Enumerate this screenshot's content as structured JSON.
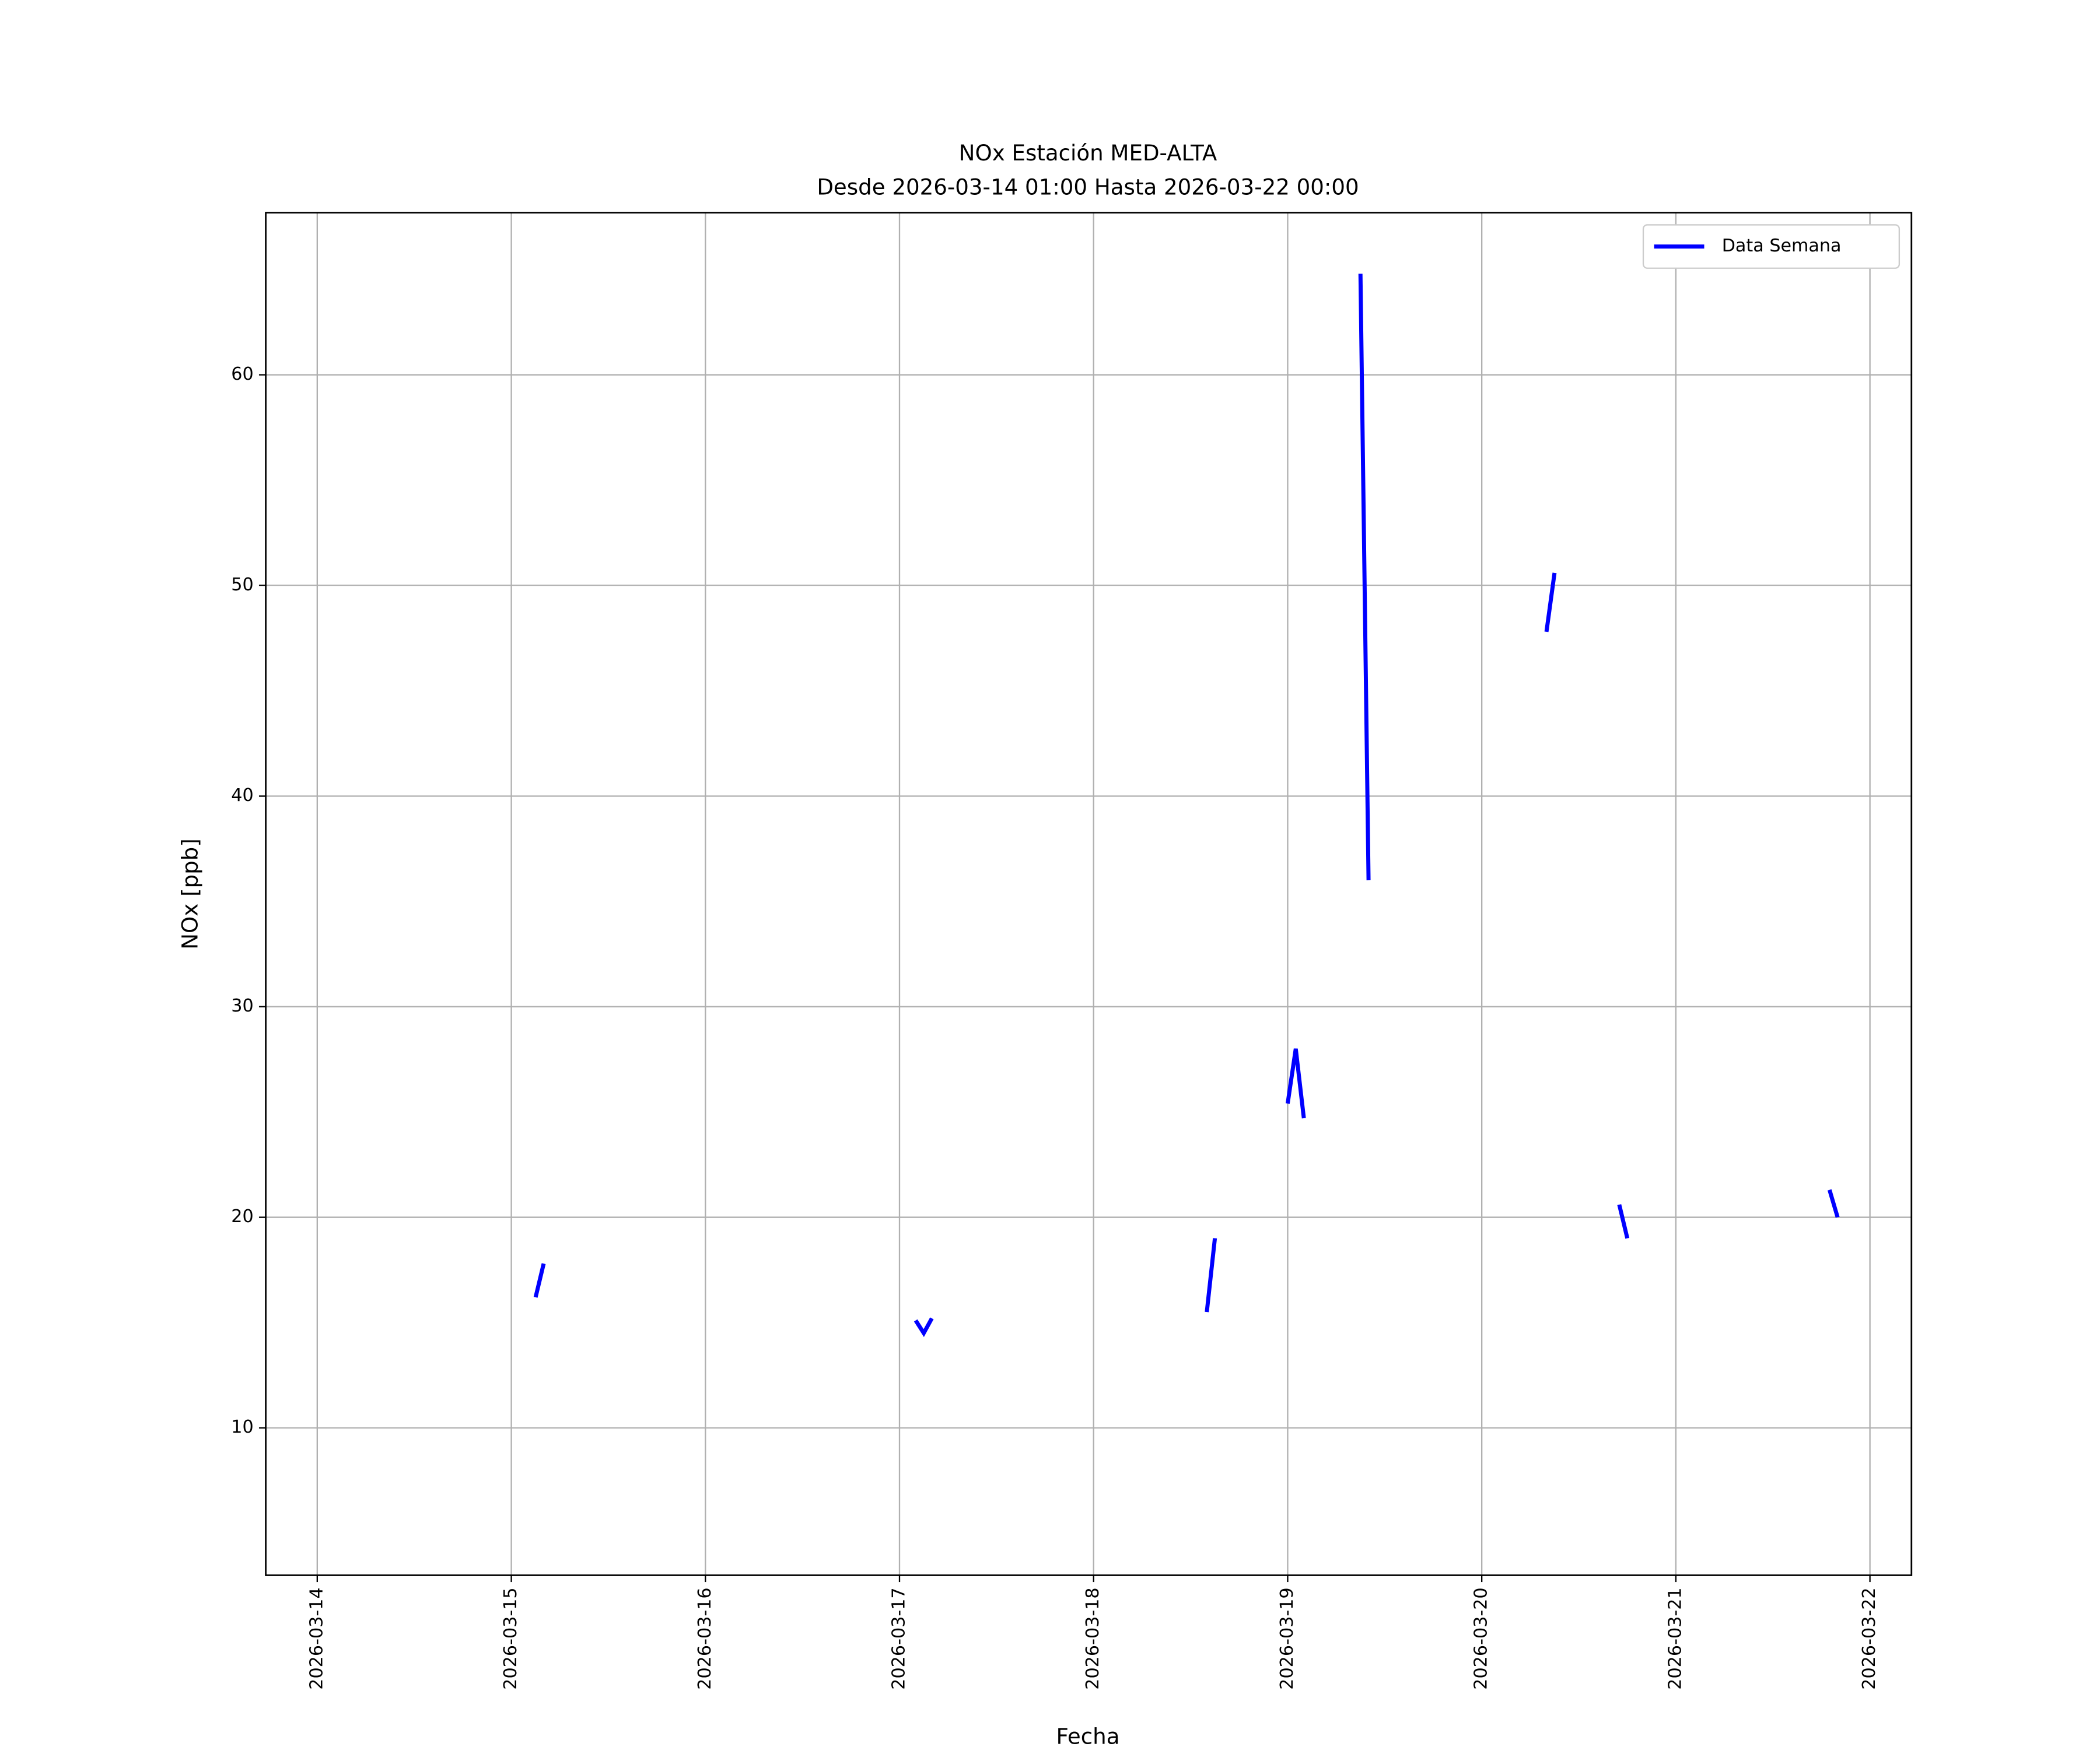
{
  "chart_data": {
    "type": "line",
    "title": "NOx Estación MED-ALTA",
    "subtitle": "Desde 2026-03-14 01:00 Hasta 2026-03-22 00:00",
    "xlabel": "Fecha",
    "ylabel": "NOx [ppb]",
    "x": [
      "2026-03-15T03:00",
      "2026-03-15T04:00",
      "2026-03-15T05:00",
      "2026-03-17T02:00",
      "2026-03-17T03:00",
      "2026-03-17T04:00",
      "2026-03-17T05:00",
      "2026-03-18T14:00",
      "2026-03-18T15:00",
      "2026-03-18T16:00",
      "2026-03-19T00:00",
      "2026-03-19T01:00",
      "2026-03-19T02:00",
      "2026-03-19T03:00",
      "2026-03-19T09:00",
      "2026-03-19T10:00",
      "2026-03-19T11:00",
      "2026-03-20T08:00",
      "2026-03-20T09:00",
      "2026-03-20T10:00",
      "2026-03-20T17:00",
      "2026-03-20T18:00",
      "2026-03-20T19:00",
      "2026-03-21T19:00",
      "2026-03-21T20:00"
    ],
    "series": [
      {
        "name": "Data Semana",
        "color": "#0000ff",
        "values": [
          16.2,
          17.8,
          null,
          15.1,
          14.5,
          15.2,
          null,
          15.5,
          19.0,
          null,
          25.4,
          28.0,
          24.7,
          null,
          64.8,
          36.0,
          null,
          47.8,
          50.6,
          null,
          20.6,
          19.0,
          null,
          21.3,
          20.0
        ]
      }
    ],
    "xlim": [
      "2026-03-13T17:38",
      "2026-03-22T05:08"
    ],
    "xticks": [
      "2026-03-14",
      "2026-03-15",
      "2026-03-16",
      "2026-03-17",
      "2026-03-18",
      "2026-03-19",
      "2026-03-20",
      "2026-03-21",
      "2026-03-22"
    ],
    "ylim": [
      3.0,
      67.7
    ],
    "yticks": [
      10,
      20,
      30,
      40,
      50,
      60
    ],
    "grid": true,
    "legend": "upper right"
  }
}
